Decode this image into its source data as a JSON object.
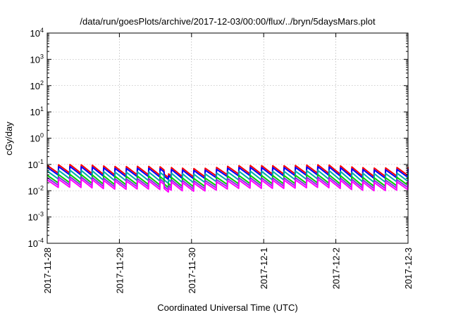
{
  "chart_data": {
    "type": "line",
    "title": "/data/run/goesPlots/archive/2017-12-03/00:00/flux/../bryn/5daysMars.plot",
    "xlabel": "Coordinated Universal Time (UTC)",
    "ylabel": "cGy/day",
    "yscale": "log",
    "ylim": [
      0.0001,
      10000
    ],
    "xlim": [
      "2017-11-28",
      "2017-12-03"
    ],
    "grid": true,
    "y_ticks": [
      {
        "value": 0.0001,
        "base": "10",
        "exp": "-4"
      },
      {
        "value": 0.001,
        "base": "10",
        "exp": "-3"
      },
      {
        "value": 0.01,
        "base": "10",
        "exp": "-2"
      },
      {
        "value": 0.1,
        "base": "10",
        "exp": "-1"
      },
      {
        "value": 1,
        "base": "10",
        "exp": "0"
      },
      {
        "value": 10,
        "base": "10",
        "exp": "1"
      },
      {
        "value": 100,
        "base": "10",
        "exp": "2"
      },
      {
        "value": 1000,
        "base": "10",
        "exp": "3"
      },
      {
        "value": 10000,
        "base": "10",
        "exp": "4"
      }
    ],
    "x_ticks": [
      "2017-11-28",
      "2017-11-29",
      "2017-11-30",
      "2017-12-1",
      "2017-12-2",
      "2017-12-3"
    ],
    "x_days": [
      0,
      1,
      2,
      3,
      4,
      5
    ],
    "series": [
      {
        "color": "#ff0000",
        "peak": 0.085,
        "trough": 0.04
      },
      {
        "color": "#0000ff",
        "peak": 0.072,
        "trough": 0.034
      },
      {
        "color": "#00aaaa",
        "peak": 0.052,
        "trough": 0.024
      },
      {
        "color": "#00cc00",
        "peak": 0.036,
        "trough": 0.017
      },
      {
        "color": "#8a2be2",
        "peak": 0.029,
        "trough": 0.014
      },
      {
        "color": "#ff00ff",
        "peak": 0.024,
        "trough": 0.0115
      }
    ],
    "cycles_per_day": 6.4,
    "dip_day": 1.65
  }
}
